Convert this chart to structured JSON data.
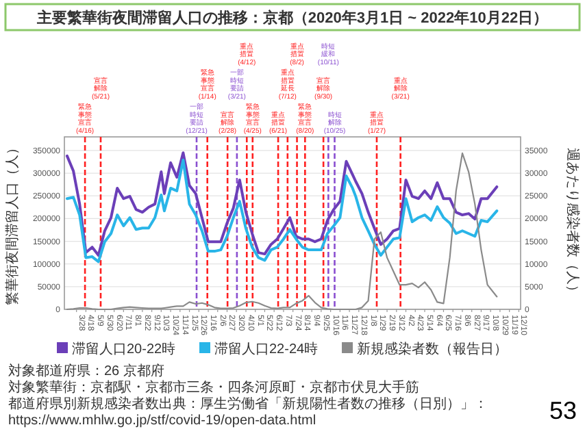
{
  "chart_data": {
    "type": "line",
    "title": "主要繁華街夜間滞留人口の推移：京都（2020年3月1日 ~ 2022年10月22日）",
    "ylabel": "繁華街夜間滞留人口（人）",
    "y2label": "週あたり感染者数（人）",
    "x": [
      "2020-03-07",
      "2020-03-21",
      "2020-04-04",
      "2020-04-18",
      "2020-05-02",
      "2020-05-16",
      "2020-05-30",
      "2020-06-13",
      "2020-06-27",
      "2020-07-11",
      "2020-07-25",
      "2020-08-08",
      "2020-08-22",
      "2020-09-05",
      "2020-09-19",
      "2020-10-03",
      "2020-10-10",
      "2020-10-24",
      "2020-11-07",
      "2020-11-21",
      "2020-12-05",
      "2020-12-19",
      "2021-01-02",
      "2021-01-16",
      "2021-01-30",
      "2021-02-13",
      "2021-02-27",
      "2021-03-13",
      "2021-03-27",
      "2021-04-10",
      "2021-04-24",
      "2021-05-08",
      "2021-05-22",
      "2021-06-05",
      "2021-06-19",
      "2021-07-03",
      "2021-07-17",
      "2021-07-31",
      "2021-08-14",
      "2021-08-28",
      "2021-09-11",
      "2021-09-25",
      "2021-10-09",
      "2021-10-23",
      "2021-11-06",
      "2021-11-20",
      "2021-12-04",
      "2021-12-11",
      "2021-12-25",
      "2022-01-08",
      "2022-01-22",
      "2022-02-05",
      "2022-02-19",
      "2022-03-05",
      "2022-03-19",
      "2022-04-02",
      "2022-04-16",
      "2022-04-30",
      "2022-05-14",
      "2022-05-28",
      "2022-06-11",
      "2022-06-25",
      "2022-07-09",
      "2022-07-23",
      "2022-08-06",
      "2022-08-20",
      "2022-09-03",
      "2022-09-17",
      "2022-10-01",
      "2022-10-22"
    ],
    "series": [
      {
        "name": "滞留人口20-22時",
        "color": "#6b3fb8",
        "values": [
          338000,
          305000,
          232000,
          125000,
          137000,
          119000,
          173000,
          202000,
          267000,
          244000,
          249000,
          220000,
          214000,
          225000,
          232000,
          303000,
          255000,
          323000,
          291000,
          345000,
          273000,
          255000,
          202000,
          149000,
          149000,
          149000,
          190000,
          223000,
          285000,
          214000,
          167000,
          125000,
          122000,
          143000,
          155000,
          178000,
          202000,
          161000,
          155000,
          155000,
          149000,
          155000,
          196000,
          220000,
          238000,
          326000,
          297000,
          282000,
          255000,
          214000,
          178000,
          143000,
          155000,
          173000,
          178000,
          285000,
          249000,
          244000,
          261000,
          244000,
          279000,
          244000,
          244000,
          214000,
          208000,
          211000,
          199000,
          244000,
          244000,
          270000
        ]
      },
      {
        "name": "滞留人口22-24時",
        "color": "#29b5e8",
        "values": [
          244000,
          247000,
          208000,
          114000,
          116000,
          105000,
          149000,
          167000,
          208000,
          184000,
          202000,
          176000,
          179000,
          179000,
          202000,
          252000,
          217000,
          267000,
          261000,
          329000,
          232000,
          208000,
          173000,
          128000,
          128000,
          131000,
          161000,
          202000,
          238000,
          178000,
          137000,
          114000,
          108000,
          131000,
          137000,
          155000,
          176000,
          155000,
          137000,
          131000,
          131000,
          131000,
          167000,
          184000,
          202000,
          294000,
          267000,
          249000,
          202000,
          173000,
          143000,
          119000,
          137000,
          155000,
          158000,
          244000,
          193000,
          202000,
          208000,
          196000,
          226000,
          202000,
          190000,
          167000,
          173000,
          167000,
          161000,
          196000,
          193000,
          217000
        ]
      },
      {
        "name": "新規感染者数（報告日）",
        "color": "#8a8a8a",
        "axis": "y2",
        "values": [
          0,
          100,
          300,
          300,
          100,
          0,
          0,
          0,
          200,
          400,
          500,
          400,
          300,
          200,
          200,
          200,
          300,
          500,
          700,
          700,
          1600,
          1200,
          1400,
          1000,
          400,
          200,
          200,
          300,
          800,
          1500,
          1700,
          1400,
          800,
          300,
          200,
          400,
          400,
          1300,
          1900,
          3000,
          1500,
          400,
          100,
          0,
          0,
          0,
          0,
          0,
          400,
          1900,
          15500,
          17000,
          11400,
          8400,
          5400,
          5400,
          5700,
          4800,
          6000,
          4300,
          1600,
          1300,
          11400,
          26100,
          34400,
          30300,
          23200,
          13100,
          5400,
          2800
        ]
      }
    ],
    "xlim": [
      "2020-03-01",
      "2022-12-14"
    ],
    "xticks": [
      {
        "value": "2020-03-28",
        "label": "3/28"
      },
      {
        "value": "2020-04-18",
        "label": "4/18"
      },
      {
        "value": "2020-05-09",
        "label": "5/9"
      },
      {
        "value": "2020-05-30",
        "label": "5/30"
      },
      {
        "value": "2020-06-20",
        "label": "6/20"
      },
      {
        "value": "2020-07-11",
        "label": "7/11"
      },
      {
        "value": "2020-08-01",
        "label": "8/1"
      },
      {
        "value": "2020-08-22",
        "label": "8/22"
      },
      {
        "value": "2020-09-12",
        "label": "9/12"
      },
      {
        "value": "2020-10-03",
        "label": "10/3"
      },
      {
        "value": "2020-10-24",
        "label": "10/24"
      },
      {
        "value": "2020-11-14",
        "label": "11/14"
      },
      {
        "value": "2020-12-05",
        "label": "12/5"
      },
      {
        "value": "2020-12-26",
        "label": "12/26"
      },
      {
        "value": "2021-01-16",
        "label": "1/16"
      },
      {
        "value": "2021-02-06",
        "label": "2/6"
      },
      {
        "value": "2021-02-27",
        "label": "2/27"
      },
      {
        "value": "2021-03-20",
        "label": "3/20"
      },
      {
        "value": "2021-04-10",
        "label": "4/10"
      },
      {
        "value": "2021-05-01",
        "label": "5/1"
      },
      {
        "value": "2021-05-22",
        "label": "5/22"
      },
      {
        "value": "2021-06-12",
        "label": "6/12"
      },
      {
        "value": "2021-07-03",
        "label": "7/3"
      },
      {
        "value": "2021-07-24",
        "label": "7/24"
      },
      {
        "value": "2021-08-14",
        "label": "8/14"
      },
      {
        "value": "2021-09-04",
        "label": "9/4"
      },
      {
        "value": "2021-09-25",
        "label": "9/25"
      },
      {
        "value": "2021-10-16",
        "label": "10/16"
      },
      {
        "value": "2021-11-06",
        "label": "11/6"
      },
      {
        "value": "2021-11-27",
        "label": "11/27"
      },
      {
        "value": "2021-12-18",
        "label": "12/18"
      },
      {
        "value": "2022-01-08",
        "label": "1/8"
      },
      {
        "value": "2022-01-29",
        "label": "1/29"
      },
      {
        "value": "2022-02-19",
        "label": "2/19"
      },
      {
        "value": "2022-03-12",
        "label": "3/12"
      },
      {
        "value": "2022-04-02",
        "label": "4/2"
      },
      {
        "value": "2022-04-23",
        "label": "4/23"
      },
      {
        "value": "2022-05-14",
        "label": "5/14"
      },
      {
        "value": "2022-06-04",
        "label": "6/4"
      },
      {
        "value": "2022-06-25",
        "label": "6/25"
      },
      {
        "value": "2022-07-16",
        "label": "7/16"
      },
      {
        "value": "2022-08-06",
        "label": "8/6"
      },
      {
        "value": "2022-08-27",
        "label": "8/27"
      },
      {
        "value": "2022-09-17",
        "label": "9/17"
      },
      {
        "value": "2022-10-08",
        "label": "10/8"
      },
      {
        "value": "2022-10-29",
        "label": "10/29"
      },
      {
        "value": "2022-11-19",
        "label": "11/19"
      },
      {
        "value": "2022-12-10",
        "label": "12/10"
      }
    ],
    "ylim": [
      0,
      380000
    ],
    "yticks": [
      0,
      50000,
      100000,
      150000,
      200000,
      250000,
      300000,
      350000
    ],
    "y2lim": [
      0,
      38000
    ],
    "y2ticks": [
      0,
      5000,
      10000,
      15000,
      20000,
      25000,
      30000,
      35000
    ],
    "ref_lines": [
      {
        "axis": "x",
        "value": "2020-04-16",
        "label": "緊急事態宣言(4/16)",
        "color": "#ff2020",
        "line_style": "dashed"
      },
      {
        "axis": "x",
        "value": "2020-05-21",
        "label": "宣言解除(5/21)",
        "color": "#ff2020",
        "line_style": "dashed"
      },
      {
        "axis": "x",
        "value": "2020-12-21",
        "label": "一部時短要請(12/21)",
        "color": "#8a4fd0",
        "line_style": "dashed"
      },
      {
        "axis": "x",
        "value": "2021-01-14",
        "label": "緊急事態宣言(1/14)",
        "color": "#ff2020",
        "line_style": "dashed"
      },
      {
        "axis": "x",
        "value": "2021-02-28",
        "label": "宣言解除(2/28)",
        "color": "#ff2020",
        "line_style": "dashed"
      },
      {
        "axis": "x",
        "value": "2021-03-21",
        "label": "一部時短要請(3/21)",
        "color": "#8a4fd0",
        "line_style": "dashed"
      },
      {
        "axis": "x",
        "value": "2021-04-12",
        "label": "重点措置(4/12)",
        "color": "#ff2020",
        "line_style": "dashed"
      },
      {
        "axis": "x",
        "value": "2021-04-25",
        "label": "緊急事態宣言(4/25)",
        "color": "#ff2020",
        "line_style": "dashed"
      },
      {
        "axis": "x",
        "value": "2021-06-21",
        "label": "重点措置(6/21)",
        "color": "#ff2020",
        "line_style": "dashed"
      },
      {
        "axis": "x",
        "value": "2021-07-12",
        "label": "重点措置延長(7/12)",
        "color": "#ff2020",
        "line_style": "dashed"
      },
      {
        "axis": "x",
        "value": "2021-08-02",
        "label": "重点措置(8/2)",
        "color": "#ff2020",
        "line_style": "dashed"
      },
      {
        "axis": "x",
        "value": "2021-08-20",
        "label": "緊急事態宣言(8/20)",
        "color": "#ff2020",
        "line_style": "dashed"
      },
      {
        "axis": "x",
        "value": "2021-09-30",
        "label": "宣言解除(9/30)",
        "color": "#ff2020",
        "line_style": "dashed"
      },
      {
        "axis": "x",
        "value": "2021-10-11",
        "label": "時短緩和(10/11)",
        "color": "#8a4fd0",
        "line_style": "dashed"
      },
      {
        "axis": "x",
        "value": "2021-10-25",
        "label": "時短解除(10/25)",
        "color": "#8a4fd0",
        "line_style": "dashed"
      },
      {
        "axis": "x",
        "value": "2022-01-27",
        "label": "重点措置(1/27)",
        "color": "#ff2020",
        "line_style": "dashed"
      },
      {
        "axis": "x",
        "value": "2022-03-21",
        "label": "重点解除(3/21)",
        "color": "#ff2020",
        "line_style": "dashed"
      }
    ],
    "grid": "y",
    "legend": "bottom",
    "annotations": [
      "対象都道府県：26 京都府",
      "対象繁華街：京都駅・京都市三条・四条河原町・京都市伏見大手筋",
      "都道府県別新規感染者数出典：厚生労働省「新規陽性者数の推移（日別）」：https://www.mhlw.go.jp/stf/covid-19/open-data.html",
      "53"
    ]
  }
}
